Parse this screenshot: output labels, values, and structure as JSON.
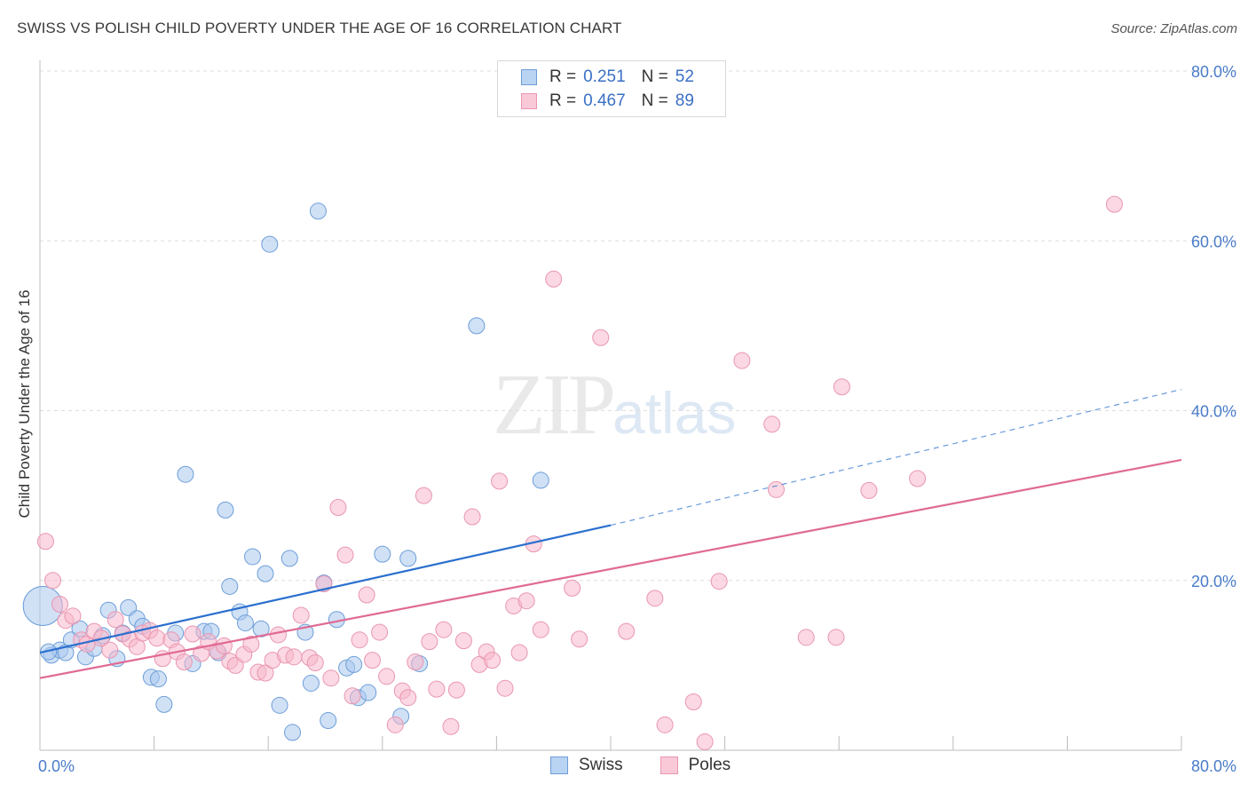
{
  "title": "SWISS VS POLISH CHILD POVERTY UNDER THE AGE OF 16 CORRELATION CHART",
  "source": "Source: ZipAtlas.com",
  "watermark": {
    "zip": "ZIP",
    "atlas": "atlas"
  },
  "legend_top": [
    {
      "r_label": "R =",
      "r_value": "0.251",
      "n_label": "N =",
      "n_value": "52"
    },
    {
      "r_label": "R =",
      "r_value": "0.467",
      "n_label": "N =",
      "n_value": "89"
    }
  ],
  "legend_bottom": [
    "Swiss",
    "Poles"
  ],
  "colors": {
    "swiss_fill": "#a9c8ef",
    "swiss_stroke": "#6d9ed8",
    "swiss_line": "#2a6fcf",
    "poles_fill": "#f7b8cc",
    "poles_stroke": "#e996b0",
    "poles_line": "#e06a94",
    "grid": "#dedede",
    "tick_text": "#4a7cc9"
  },
  "chart_data": {
    "type": "scatter",
    "title": "SWISS VS POLISH CHILD POVERTY UNDER THE AGE OF 16 CORRELATION CHART",
    "xlabel": "",
    "ylabel": "Child Poverty Under the Age of 16",
    "xlim": [
      0,
      80
    ],
    "ylim": [
      0,
      80
    ],
    "x_tick_labels": [
      "0.0%",
      "80.0%"
    ],
    "y_tick_labels": [
      "20.0%",
      "40.0%",
      "60.0%",
      "80.0%"
    ],
    "y_ticks": [
      20,
      40,
      60,
      80
    ],
    "grid": true,
    "legend_position": "top-center",
    "series": [
      {
        "name": "Swiss",
        "r": 0.251,
        "n": 52,
        "trend": {
          "x0": 0,
          "y0": 11.5,
          "x1": 40,
          "y1": 26.5,
          "dashed_to": 80,
          "dashed_y": 42.5
        },
        "points": [
          [
            0.2,
            17.0,
            "big"
          ],
          [
            0.8,
            11.2
          ],
          [
            1.4,
            11.8
          ],
          [
            1.8,
            11.5
          ],
          [
            2.2,
            13.0
          ],
          [
            2.8,
            14.3
          ],
          [
            3.2,
            11.0
          ],
          [
            3.8,
            12.0
          ],
          [
            4.4,
            13.5
          ],
          [
            4.8,
            16.5
          ],
          [
            5.4,
            10.8
          ],
          [
            5.8,
            13.8
          ],
          [
            6.2,
            16.8
          ],
          [
            6.8,
            15.5
          ],
          [
            7.2,
            14.6
          ],
          [
            7.8,
            8.6
          ],
          [
            8.3,
            8.4
          ],
          [
            8.7,
            5.4
          ],
          [
            9.5,
            13.8
          ],
          [
            10.2,
            32.5
          ],
          [
            10.7,
            10.2
          ],
          [
            11.5,
            14.0
          ],
          [
            12.0,
            14.0
          ],
          [
            12.5,
            11.5
          ],
          [
            13.0,
            28.3
          ],
          [
            13.3,
            19.3
          ],
          [
            14.0,
            16.3
          ],
          [
            14.4,
            15.0
          ],
          [
            14.9,
            22.8
          ],
          [
            15.5,
            14.3
          ],
          [
            15.8,
            20.8
          ],
          [
            16.1,
            59.6
          ],
          [
            16.8,
            5.3
          ],
          [
            17.5,
            22.6
          ],
          [
            17.7,
            2.1
          ],
          [
            18.6,
            13.9
          ],
          [
            19.0,
            7.9
          ],
          [
            19.5,
            63.5
          ],
          [
            19.9,
            19.7
          ],
          [
            20.2,
            3.5
          ],
          [
            20.8,
            15.4
          ],
          [
            21.5,
            9.7
          ],
          [
            22.0,
            10.1
          ],
          [
            22.3,
            6.2
          ],
          [
            23.0,
            6.8
          ],
          [
            24.0,
            23.1
          ],
          [
            25.3,
            4.0
          ],
          [
            25.8,
            22.6
          ],
          [
            26.6,
            10.2
          ],
          [
            30.6,
            50.0
          ],
          [
            35.1,
            31.8
          ],
          [
            0.6,
            11.6
          ]
        ]
      },
      {
        "name": "Poles",
        "r": 0.467,
        "n": 89,
        "trend": {
          "x0": 0,
          "y0": 8.5,
          "x1": 80,
          "y1": 34.2
        },
        "points": [
          [
            0.4,
            24.6
          ],
          [
            0.9,
            20.0
          ],
          [
            1.4,
            17.2
          ],
          [
            1.8,
            15.3
          ],
          [
            2.3,
            15.8
          ],
          [
            2.9,
            13.0
          ],
          [
            3.3,
            12.5
          ],
          [
            3.8,
            14.0
          ],
          [
            4.3,
            13.2
          ],
          [
            4.9,
            11.8
          ],
          [
            5.3,
            15.4
          ],
          [
            5.8,
            13.7
          ],
          [
            6.3,
            13.1
          ],
          [
            6.8,
            12.2
          ],
          [
            7.2,
            13.8
          ],
          [
            7.7,
            14.1
          ],
          [
            8.2,
            13.2
          ],
          [
            8.6,
            10.8
          ],
          [
            9.2,
            13.0
          ],
          [
            9.6,
            11.6
          ],
          [
            10.1,
            10.4
          ],
          [
            10.7,
            13.7
          ],
          [
            11.3,
            11.4
          ],
          [
            11.8,
            12.8
          ],
          [
            12.4,
            11.7
          ],
          [
            12.9,
            12.3
          ],
          [
            13.3,
            10.5
          ],
          [
            13.7,
            10.0
          ],
          [
            14.3,
            11.3
          ],
          [
            14.8,
            12.5
          ],
          [
            15.3,
            9.2
          ],
          [
            15.8,
            9.1
          ],
          [
            16.3,
            10.6
          ],
          [
            16.7,
            13.6
          ],
          [
            17.2,
            11.2
          ],
          [
            17.8,
            11.0
          ],
          [
            18.3,
            15.9
          ],
          [
            18.9,
            10.9
          ],
          [
            19.3,
            10.3
          ],
          [
            19.9,
            19.6
          ],
          [
            20.4,
            8.5
          ],
          [
            20.9,
            28.6
          ],
          [
            21.4,
            23.0
          ],
          [
            21.9,
            6.4
          ],
          [
            22.4,
            13.0
          ],
          [
            22.9,
            18.3
          ],
          [
            23.3,
            10.6
          ],
          [
            23.8,
            13.9
          ],
          [
            24.3,
            8.7
          ],
          [
            24.9,
            3.0
          ],
          [
            25.4,
            7.0
          ],
          [
            25.8,
            6.2
          ],
          [
            26.3,
            10.4
          ],
          [
            26.9,
            30.0
          ],
          [
            27.3,
            12.8
          ],
          [
            27.8,
            7.2
          ],
          [
            28.3,
            14.2
          ],
          [
            28.8,
            2.8
          ],
          [
            29.2,
            7.1
          ],
          [
            29.7,
            12.9
          ],
          [
            30.3,
            27.5
          ],
          [
            30.8,
            10.1
          ],
          [
            31.3,
            11.6
          ],
          [
            31.7,
            10.6
          ],
          [
            32.2,
            31.7
          ],
          [
            32.6,
            7.3
          ],
          [
            33.2,
            17.0
          ],
          [
            33.6,
            11.5
          ],
          [
            34.1,
            17.6
          ],
          [
            34.6,
            24.3
          ],
          [
            35.1,
            14.2
          ],
          [
            36.0,
            55.5
          ],
          [
            37.3,
            19.1
          ],
          [
            37.8,
            13.1
          ],
          [
            39.3,
            48.6
          ],
          [
            41.1,
            14.0
          ],
          [
            43.1,
            17.9
          ],
          [
            43.8,
            3.0
          ],
          [
            45.8,
            5.7
          ],
          [
            46.6,
            1.0
          ],
          [
            47.6,
            19.9
          ],
          [
            49.2,
            45.9
          ],
          [
            51.3,
            38.4
          ],
          [
            51.6,
            30.7
          ],
          [
            53.7,
            13.3
          ],
          [
            55.8,
            13.3
          ],
          [
            56.2,
            42.8
          ],
          [
            58.1,
            30.6
          ],
          [
            61.5,
            32.0
          ],
          [
            75.3,
            64.3
          ]
        ]
      }
    ]
  }
}
